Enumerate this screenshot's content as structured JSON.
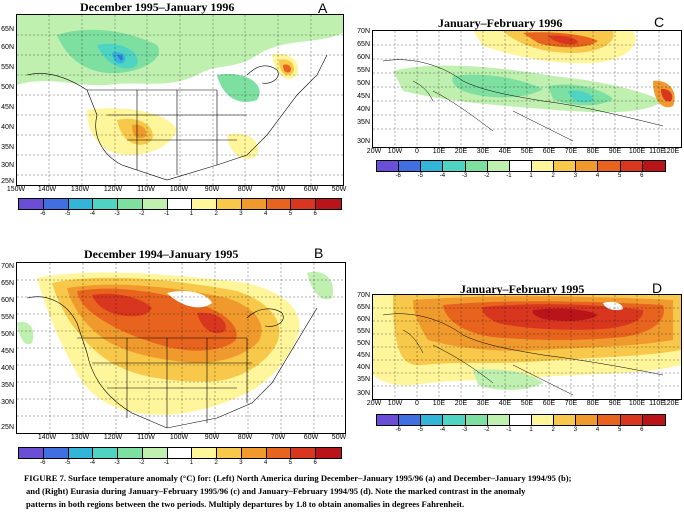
{
  "figure": {
    "caption_lines": [
      "FIGURE 7.  Surface temperature anomaly (°C) for: (Left) North America during December–January 1995/96 (a) and December–January 1994/95 (b);",
      "and (Right) Eurasia during January–February 1995/96 (c) and January–February 1994/95 (d). Note the marked contrast in the anomaly",
      "patterns in both regions between the two periods. Multiply departures by 1.8 to obtain anomalies in degrees Fahrenheit."
    ]
  },
  "colorbar": {
    "labels": [
      "-6",
      "-5",
      "-4",
      "-3",
      "-2",
      "-1",
      "1",
      "2",
      "3",
      "4",
      "5",
      "6"
    ],
    "colors": [
      "#6a4fd6",
      "#3f6fe0",
      "#33b5d9",
      "#4fd3c2",
      "#7ee0a0",
      "#c0f0b0",
      "#ffffff",
      "#fff59a",
      "#f7c84a",
      "#f09a2e",
      "#e8641e",
      "#d8361e",
      "#b8141a"
    ]
  },
  "panels": {
    "a": {
      "title": "December 1995–January 1996",
      "letter": "A",
      "lat_labels": [
        "65N",
        "60N",
        "55N",
        "50N",
        "45N",
        "40N",
        "35N",
        "30N",
        "25N"
      ],
      "lon_labels": [
        "150W",
        "140W",
        "130W",
        "120W",
        "110W",
        "100W",
        "90W",
        "80W",
        "70W",
        "60W",
        "50W"
      ]
    },
    "b": {
      "title": "December 1994–January 1995",
      "letter": "B",
      "lat_labels": [
        "70N",
        "65N",
        "60N",
        "55N",
        "50N",
        "45N",
        "40N",
        "35N",
        "30N",
        "25N"
      ],
      "lon_labels": [
        "140W",
        "130W",
        "120W",
        "110W",
        "100W",
        "90W",
        "80W",
        "70W",
        "60W",
        "50W"
      ]
    },
    "c": {
      "title": "January–February 1996",
      "letter": "C",
      "lat_labels": [
        "70N",
        "65N",
        "60N",
        "55N",
        "50N",
        "45N",
        "40N",
        "35N",
        "30N"
      ],
      "lon_labels": [
        "20W",
        "10W",
        "0",
        "10E",
        "20E",
        "30E",
        "40E",
        "50E",
        "60E",
        "70E",
        "80E",
        "90E",
        "100E",
        "110E",
        "120E"
      ]
    },
    "d": {
      "title": "January–February 1995",
      "letter": "D",
      "lat_labels": [
        "70N",
        "65N",
        "60N",
        "55N",
        "50N",
        "45N",
        "40N",
        "35N",
        "30N"
      ],
      "lon_labels": [
        "20W",
        "10W",
        "0",
        "10E",
        "20E",
        "30E",
        "40E",
        "50E",
        "60E",
        "70E",
        "80E",
        "90E",
        "100E",
        "110E",
        "120E"
      ]
    }
  }
}
